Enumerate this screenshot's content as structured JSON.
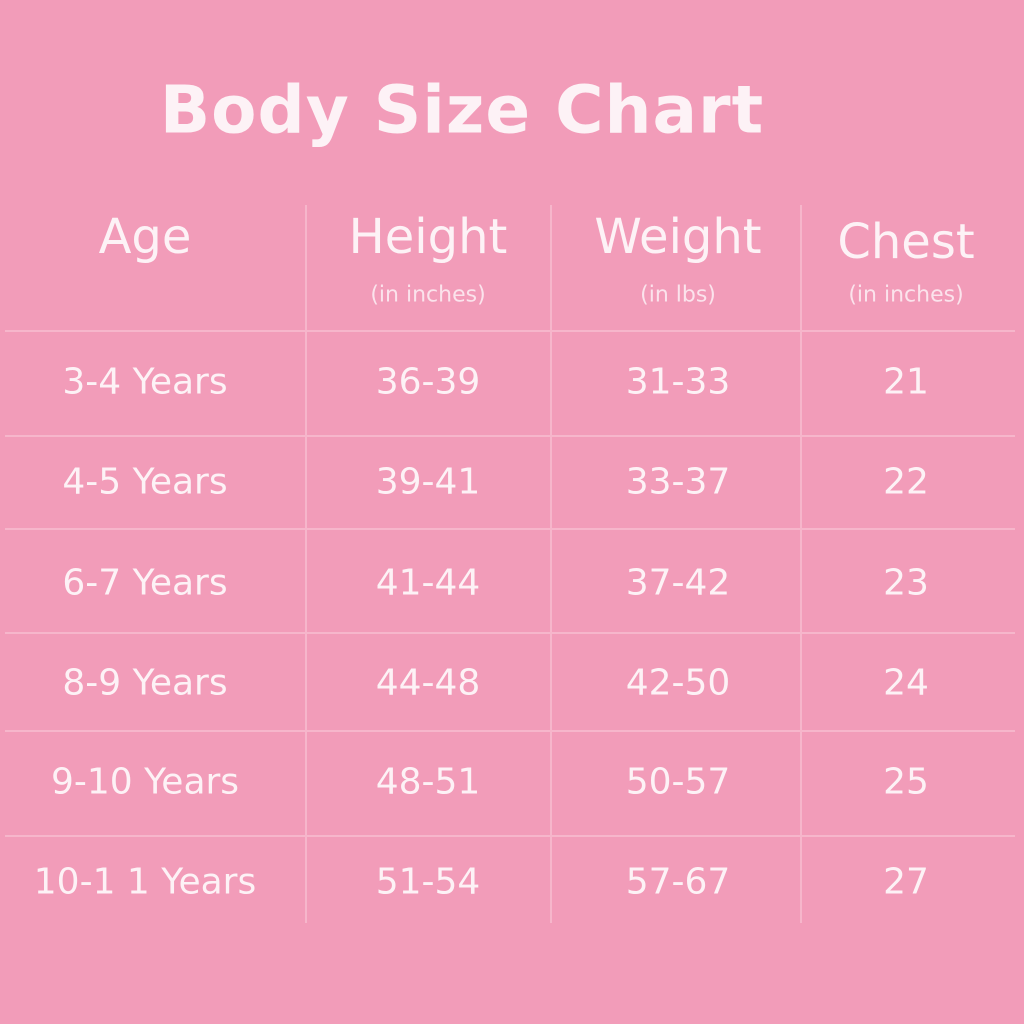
{
  "title": "Body Size Chart",
  "table": {
    "columns": [
      {
        "name": "Age"
      },
      {
        "name": "Height",
        "unit": "(in inches)"
      },
      {
        "name": "Weight",
        "unit": "(in lbs)"
      },
      {
        "name": "Chest",
        "unit": "(in inches)"
      }
    ],
    "rows": [
      [
        "3-4 Years",
        "36-39",
        "31-33",
        21
      ],
      [
        "4-5 Years",
        "39-41",
        "33-37",
        22
      ],
      [
        "6-7 Years",
        "41-44",
        "37-42",
        23
      ],
      [
        "8-9 Years",
        "44-48",
        "42-50",
        24
      ],
      [
        "9-10 Years",
        "48-51",
        "50-57",
        25
      ],
      [
        "10-1 1 Years",
        "51-54",
        "57-67",
        27
      ]
    ]
  }
}
